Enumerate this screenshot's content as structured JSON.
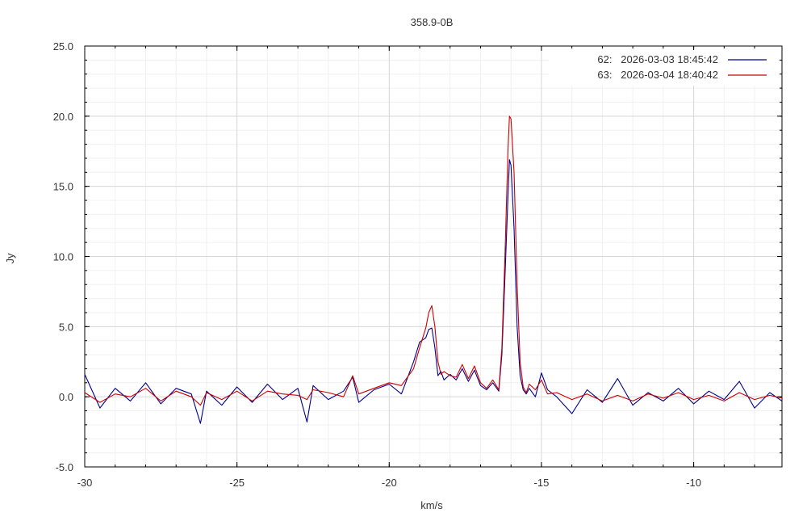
{
  "chart_data": {
    "type": "line",
    "title": "358.9-0B",
    "xlabel": "km/s",
    "ylabel": "Jy",
    "xlim": [
      -30,
      -7.1
    ],
    "ylim": [
      -5,
      25
    ],
    "x_ticks": [
      -30,
      -25,
      -20,
      -15,
      -10
    ],
    "x_tick_labels": [
      "-30",
      "-25",
      "-20",
      "-15",
      "-10"
    ],
    "y_ticks": [
      -5,
      0,
      5,
      10,
      15,
      20,
      25
    ],
    "y_tick_labels": [
      "-5.0",
      "0.0",
      "5.0",
      "10.0",
      "15.0",
      "20.0",
      "25.0"
    ],
    "grid": true,
    "legend_position": "top-right",
    "series": [
      {
        "name": "62:   2026-03-03 18:45:42",
        "color": "#00008b",
        "x": [
          -30,
          -29.5,
          -29,
          -28.5,
          -28,
          -27.5,
          -27,
          -26.5,
          -26.2,
          -26,
          -25.5,
          -25,
          -24.5,
          -24,
          -23.5,
          -23,
          -22.7,
          -22.5,
          -22,
          -21.5,
          -21.2,
          -21,
          -20.5,
          -20,
          -19.6,
          -19.2,
          -19,
          -18.8,
          -18.7,
          -18.6,
          -18.5,
          -18.4,
          -18.3,
          -18.2,
          -18,
          -17.8,
          -17.6,
          -17.4,
          -17.2,
          -17,
          -16.8,
          -16.6,
          -16.4,
          -16.3,
          -16.2,
          -16.1,
          -16.05,
          -16,
          -15.9,
          -15.8,
          -15.7,
          -15.6,
          -15.5,
          -15.4,
          -15.2,
          -15,
          -14.8,
          -14.5,
          -14,
          -13.5,
          -13,
          -12.5,
          -12,
          -11.5,
          -11,
          -10.5,
          -10,
          -9.5,
          -9,
          -8.5,
          -8,
          -7.5,
          -7.1
        ],
        "values": [
          1.6,
          -0.8,
          0.6,
          -0.3,
          1.0,
          -0.5,
          0.6,
          0.2,
          -1.9,
          0.4,
          -0.6,
          0.7,
          -0.4,
          0.9,
          -0.2,
          0.6,
          -1.8,
          0.8,
          -0.2,
          0.4,
          1.4,
          -0.4,
          0.5,
          0.9,
          0.2,
          2.5,
          3.9,
          4.2,
          4.8,
          4.9,
          3.5,
          1.5,
          1.8,
          1.2,
          1.6,
          1.2,
          2.0,
          1.1,
          1.9,
          0.8,
          0.5,
          1.0,
          0.4,
          3.0,
          8.5,
          14.2,
          16.9,
          16.5,
          12.0,
          5.0,
          1.5,
          0.5,
          0.2,
          0.6,
          0.0,
          1.7,
          0.5,
          0.0,
          -1.2,
          0.5,
          -0.4,
          1.3,
          -0.6,
          0.3,
          -0.3,
          0.6,
          -0.5,
          0.4,
          -0.2,
          1.1,
          -0.8,
          0.3,
          -0.3
        ]
      },
      {
        "name": "63:   2026-03-04 18:40:42",
        "color": "#cc0000",
        "x": [
          -30,
          -29.5,
          -29,
          -28.5,
          -28,
          -27.5,
          -27,
          -26.5,
          -26.2,
          -26,
          -25.5,
          -25,
          -24.5,
          -24,
          -23.5,
          -23,
          -22.7,
          -22.5,
          -22,
          -21.5,
          -21.2,
          -21,
          -20.5,
          -20,
          -19.6,
          -19.2,
          -19,
          -18.8,
          -18.7,
          -18.6,
          -18.5,
          -18.4,
          -18.3,
          -18.2,
          -18,
          -17.8,
          -17.6,
          -17.4,
          -17.2,
          -17,
          -16.8,
          -16.6,
          -16.4,
          -16.3,
          -16.2,
          -16.1,
          -16.05,
          -16,
          -15.9,
          -15.8,
          -15.7,
          -15.6,
          -15.5,
          -15.4,
          -15.2,
          -15,
          -14.8,
          -14.5,
          -14,
          -13.5,
          -13,
          -12.5,
          -12,
          -11.5,
          -11,
          -10.5,
          -10,
          -9.5,
          -9,
          -8.5,
          -8,
          -7.5,
          -7.1
        ],
        "values": [
          0.3,
          -0.4,
          0.2,
          0.0,
          0.6,
          -0.3,
          0.4,
          0.0,
          -0.6,
          0.3,
          -0.2,
          0.4,
          -0.3,
          0.4,
          0.2,
          0.1,
          -0.2,
          0.5,
          0.3,
          0.0,
          1.5,
          0.2,
          0.6,
          1.0,
          0.8,
          2.0,
          3.5,
          4.9,
          6.0,
          6.5,
          5.0,
          2.5,
          1.6,
          1.8,
          1.5,
          1.4,
          2.3,
          1.3,
          2.2,
          1.0,
          0.6,
          1.2,
          0.5,
          3.5,
          10.0,
          17.5,
          20.0,
          19.8,
          16.0,
          8.0,
          2.5,
          0.7,
          0.3,
          0.9,
          0.5,
          1.2,
          0.2,
          0.3,
          -0.2,
          0.2,
          -0.3,
          0.1,
          -0.3,
          0.2,
          -0.1,
          0.3,
          -0.2,
          0.1,
          -0.3,
          0.3,
          -0.2,
          0.1,
          -0.1
        ]
      }
    ]
  }
}
